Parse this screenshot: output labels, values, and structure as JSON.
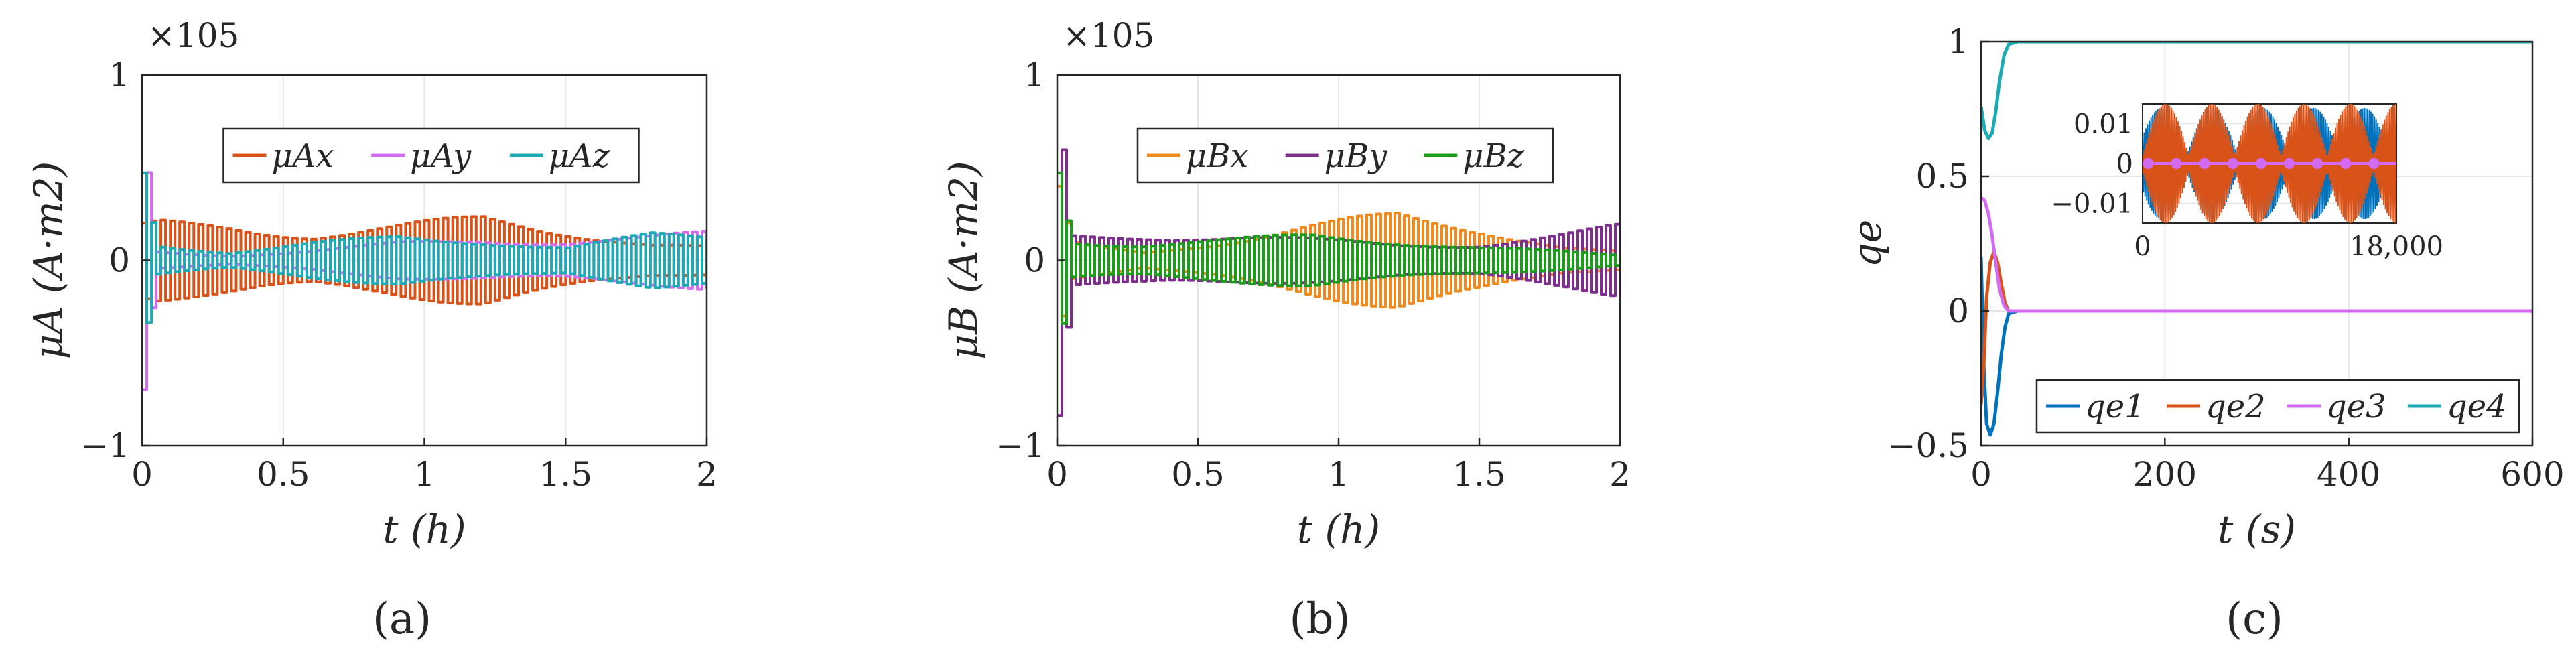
{
  "chart_data": [
    {
      "type": "line",
      "panel_label": "(a)",
      "xlabel": "t (h)",
      "ylabel": "μA (A·m2)",
      "exponent_label": "×105",
      "xlim": [
        0,
        2
      ],
      "ylim": [
        -1,
        1
      ],
      "xticks": [
        "0",
        "0.5",
        "1",
        "1.5",
        "2"
      ],
      "yticks": [
        "−1",
        "0",
        "1"
      ],
      "grid": true,
      "legend_position": "top-center",
      "series": [
        {
          "name": "μAx",
          "color": "#D95319",
          "envelope_x": [
            0,
            0.05,
            0.3,
            0.6,
            0.9,
            1.2,
            1.5,
            1.8,
            2.0
          ],
          "envelope_y": [
            0.2,
            0.22,
            0.21,
            0.16,
            0.2,
            0.25,
            0.18,
            0.1,
            0.08
          ]
        },
        {
          "name": "μAy",
          "color": "#D36BF2",
          "envelope_x": [
            0,
            0.05,
            0.3,
            0.6,
            0.9,
            1.2,
            1.5,
            1.8,
            2.0
          ],
          "envelope_y": [
            0.75,
            0.05,
            0.03,
            0.06,
            0.1,
            0.12,
            0.12,
            0.14,
            0.16
          ]
        },
        {
          "name": "μAz",
          "color": "#1CAAB4",
          "envelope_x": [
            0,
            0.05,
            0.3,
            0.6,
            0.9,
            1.2,
            1.5,
            1.8,
            2.0
          ],
          "envelope_y": [
            0.6,
            0.1,
            0.05,
            0.1,
            0.14,
            0.12,
            0.08,
            0.15,
            0.14
          ]
        }
      ]
    },
    {
      "type": "line",
      "panel_label": "(b)",
      "xlabel": "t (h)",
      "ylabel": "μB (A·m2)",
      "exponent_label": "×105",
      "xlim": [
        0,
        2
      ],
      "ylim": [
        -1,
        1
      ],
      "xticks": [
        "0",
        "0.5",
        "1",
        "1.5",
        "2"
      ],
      "yticks": [
        "−1",
        "0",
        "1"
      ],
      "grid": true,
      "legend_position": "top-center",
      "series": [
        {
          "name": "μBx",
          "color": "#F08A1C",
          "envelope_x": [
            0,
            0.05,
            0.3,
            0.6,
            0.9,
            1.2,
            1.5,
            1.8,
            2.0
          ],
          "envelope_y": [
            0.4,
            0.1,
            0.05,
            0.12,
            0.2,
            0.27,
            0.2,
            0.08,
            0.05
          ]
        },
        {
          "name": "μBy",
          "color": "#7E2F8E",
          "envelope_x": [
            0,
            0.05,
            0.3,
            0.6,
            0.9,
            1.2,
            1.5,
            1.8,
            2.0
          ],
          "envelope_y": [
            0.9,
            0.15,
            0.16,
            0.14,
            0.12,
            0.1,
            0.1,
            0.15,
            0.2
          ]
        },
        {
          "name": "μBz",
          "color": "#1A9E1A",
          "envelope_x": [
            0,
            0.05,
            0.3,
            0.6,
            0.9,
            1.2,
            1.5,
            1.8,
            2.0
          ],
          "envelope_y": [
            0.6,
            0.12,
            0.1,
            0.12,
            0.15,
            0.12,
            0.08,
            0.05,
            0.03
          ]
        }
      ]
    },
    {
      "type": "line",
      "panel_label": "(c)",
      "xlabel": "t (s)",
      "ylabel": "qe",
      "xlim": [
        0,
        600
      ],
      "ylim": [
        -0.5,
        1
      ],
      "xticks": [
        "0",
        "200",
        "400",
        "600"
      ],
      "yticks": [
        "−0.5",
        "0",
        "0.5",
        "1"
      ],
      "grid": true,
      "legend_position": "bottom-right",
      "series": [
        {
          "name": "qe1",
          "color": "#0072BD",
          "x": [
            0,
            3,
            6,
            10,
            14,
            18,
            22,
            26,
            30,
            40,
            60,
            600
          ],
          "y": [
            0.2,
            -0.2,
            -0.42,
            -0.46,
            -0.42,
            -0.3,
            -0.16,
            -0.06,
            -0.01,
            0,
            0,
            0
          ]
        },
        {
          "name": "qe2",
          "color": "#D95319",
          "x": [
            0,
            3,
            6,
            10,
            14,
            18,
            22,
            26,
            30,
            40,
            60,
            600
          ],
          "y": [
            -0.35,
            -0.2,
            0.05,
            0.18,
            0.22,
            0.18,
            0.1,
            0.03,
            0.0,
            0,
            0,
            0
          ]
        },
        {
          "name": "qe3",
          "color": "#D36BF2",
          "x": [
            0,
            4,
            8,
            12,
            16,
            20,
            25,
            30,
            40,
            60,
            600
          ],
          "y": [
            0.42,
            0.41,
            0.36,
            0.28,
            0.18,
            0.08,
            0.02,
            0.0,
            0,
            0,
            0
          ]
        },
        {
          "name": "qe4",
          "color": "#1CAAB4",
          "x": [
            0,
            4,
            8,
            12,
            16,
            20,
            25,
            30,
            40,
            60,
            600
          ],
          "y": [
            0.76,
            0.67,
            0.64,
            0.66,
            0.74,
            0.85,
            0.95,
            0.99,
            1.0,
            1.0,
            1.0
          ]
        }
      ],
      "inset": {
        "xlim": [
          0,
          18000
        ],
        "ylim": [
          -0.015,
          0.015
        ],
        "xticks": [
          "0",
          "18,000"
        ],
        "yticks": [
          "0.01",
          "0",
          "−0.01"
        ]
      }
    }
  ]
}
